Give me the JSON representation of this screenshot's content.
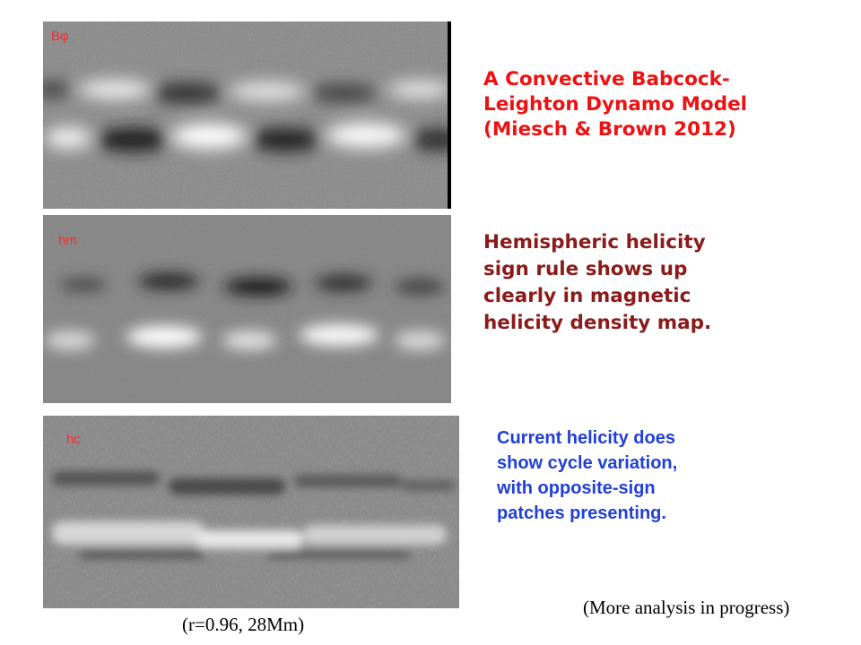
{
  "colors": {
    "red": "#ee1111",
    "dark_red": "#8b1a1a",
    "blue": "#1f3fd6",
    "label_red": "#ff2a2a",
    "panel_gray": "#808080"
  },
  "panels": [
    {
      "label": "Bφ"
    },
    {
      "label": "hm"
    },
    {
      "label": "hc"
    }
  ],
  "text": {
    "title_lines": [
      "A Convective Babcock-",
      "Leighton Dynamo Model",
      "(Miesch & Brown 2012)"
    ],
    "helicity_lines": [
      "Hemispheric helicity",
      "sign rule shows up",
      "clearly in magnetic",
      "helicity density map."
    ],
    "current_lines": [
      "Current helicity does",
      "show cycle variation,",
      "with opposite-sign",
      "patches presenting."
    ],
    "footer_right": "(More analysis in progress)",
    "footer_left": "(r=0.96, 28Mm)"
  }
}
